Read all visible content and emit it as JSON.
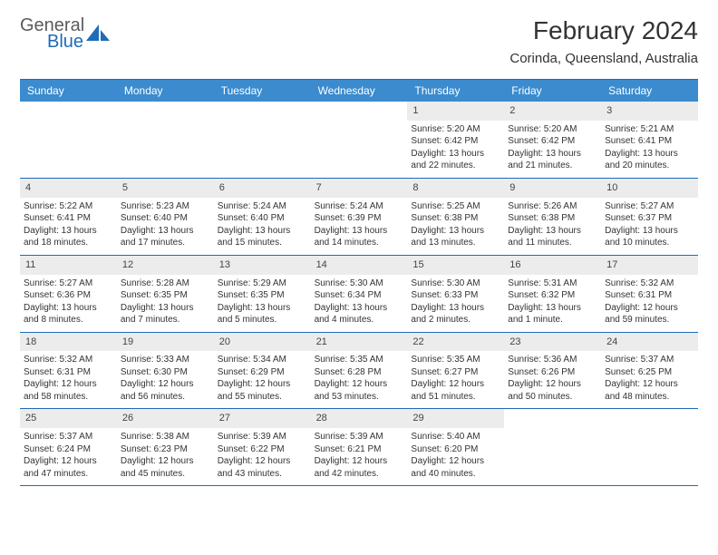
{
  "logo": {
    "word1": "General",
    "word2": "Blue",
    "icon_color": "#1e6bb8",
    "text_color_gray": "#5b5b5b"
  },
  "title": "February 2024",
  "location": "Corinda, Queensland, Australia",
  "weekday_bg": "#3b8bce",
  "border_color": "#1e6bb8",
  "daynum_bg": "#ececec",
  "weekdays": [
    "Sunday",
    "Monday",
    "Tuesday",
    "Wednesday",
    "Thursday",
    "Friday",
    "Saturday"
  ],
  "weeks": [
    [
      {
        "day": "",
        "sunrise": "",
        "sunset": "",
        "daylight1": "",
        "daylight2": ""
      },
      {
        "day": "",
        "sunrise": "",
        "sunset": "",
        "daylight1": "",
        "daylight2": ""
      },
      {
        "day": "",
        "sunrise": "",
        "sunset": "",
        "daylight1": "",
        "daylight2": ""
      },
      {
        "day": "",
        "sunrise": "",
        "sunset": "",
        "daylight1": "",
        "daylight2": ""
      },
      {
        "day": "1",
        "sunrise": "Sunrise: 5:20 AM",
        "sunset": "Sunset: 6:42 PM",
        "daylight1": "Daylight: 13 hours",
        "daylight2": "and 22 minutes."
      },
      {
        "day": "2",
        "sunrise": "Sunrise: 5:20 AM",
        "sunset": "Sunset: 6:42 PM",
        "daylight1": "Daylight: 13 hours",
        "daylight2": "and 21 minutes."
      },
      {
        "day": "3",
        "sunrise": "Sunrise: 5:21 AM",
        "sunset": "Sunset: 6:41 PM",
        "daylight1": "Daylight: 13 hours",
        "daylight2": "and 20 minutes."
      }
    ],
    [
      {
        "day": "4",
        "sunrise": "Sunrise: 5:22 AM",
        "sunset": "Sunset: 6:41 PM",
        "daylight1": "Daylight: 13 hours",
        "daylight2": "and 18 minutes."
      },
      {
        "day": "5",
        "sunrise": "Sunrise: 5:23 AM",
        "sunset": "Sunset: 6:40 PM",
        "daylight1": "Daylight: 13 hours",
        "daylight2": "and 17 minutes."
      },
      {
        "day": "6",
        "sunrise": "Sunrise: 5:24 AM",
        "sunset": "Sunset: 6:40 PM",
        "daylight1": "Daylight: 13 hours",
        "daylight2": "and 15 minutes."
      },
      {
        "day": "7",
        "sunrise": "Sunrise: 5:24 AM",
        "sunset": "Sunset: 6:39 PM",
        "daylight1": "Daylight: 13 hours",
        "daylight2": "and 14 minutes."
      },
      {
        "day": "8",
        "sunrise": "Sunrise: 5:25 AM",
        "sunset": "Sunset: 6:38 PM",
        "daylight1": "Daylight: 13 hours",
        "daylight2": "and 13 minutes."
      },
      {
        "day": "9",
        "sunrise": "Sunrise: 5:26 AM",
        "sunset": "Sunset: 6:38 PM",
        "daylight1": "Daylight: 13 hours",
        "daylight2": "and 11 minutes."
      },
      {
        "day": "10",
        "sunrise": "Sunrise: 5:27 AM",
        "sunset": "Sunset: 6:37 PM",
        "daylight1": "Daylight: 13 hours",
        "daylight2": "and 10 minutes."
      }
    ],
    [
      {
        "day": "11",
        "sunrise": "Sunrise: 5:27 AM",
        "sunset": "Sunset: 6:36 PM",
        "daylight1": "Daylight: 13 hours",
        "daylight2": "and 8 minutes."
      },
      {
        "day": "12",
        "sunrise": "Sunrise: 5:28 AM",
        "sunset": "Sunset: 6:35 PM",
        "daylight1": "Daylight: 13 hours",
        "daylight2": "and 7 minutes."
      },
      {
        "day": "13",
        "sunrise": "Sunrise: 5:29 AM",
        "sunset": "Sunset: 6:35 PM",
        "daylight1": "Daylight: 13 hours",
        "daylight2": "and 5 minutes."
      },
      {
        "day": "14",
        "sunrise": "Sunrise: 5:30 AM",
        "sunset": "Sunset: 6:34 PM",
        "daylight1": "Daylight: 13 hours",
        "daylight2": "and 4 minutes."
      },
      {
        "day": "15",
        "sunrise": "Sunrise: 5:30 AM",
        "sunset": "Sunset: 6:33 PM",
        "daylight1": "Daylight: 13 hours",
        "daylight2": "and 2 minutes."
      },
      {
        "day": "16",
        "sunrise": "Sunrise: 5:31 AM",
        "sunset": "Sunset: 6:32 PM",
        "daylight1": "Daylight: 13 hours",
        "daylight2": "and 1 minute."
      },
      {
        "day": "17",
        "sunrise": "Sunrise: 5:32 AM",
        "sunset": "Sunset: 6:31 PM",
        "daylight1": "Daylight: 12 hours",
        "daylight2": "and 59 minutes."
      }
    ],
    [
      {
        "day": "18",
        "sunrise": "Sunrise: 5:32 AM",
        "sunset": "Sunset: 6:31 PM",
        "daylight1": "Daylight: 12 hours",
        "daylight2": "and 58 minutes."
      },
      {
        "day": "19",
        "sunrise": "Sunrise: 5:33 AM",
        "sunset": "Sunset: 6:30 PM",
        "daylight1": "Daylight: 12 hours",
        "daylight2": "and 56 minutes."
      },
      {
        "day": "20",
        "sunrise": "Sunrise: 5:34 AM",
        "sunset": "Sunset: 6:29 PM",
        "daylight1": "Daylight: 12 hours",
        "daylight2": "and 55 minutes."
      },
      {
        "day": "21",
        "sunrise": "Sunrise: 5:35 AM",
        "sunset": "Sunset: 6:28 PM",
        "daylight1": "Daylight: 12 hours",
        "daylight2": "and 53 minutes."
      },
      {
        "day": "22",
        "sunrise": "Sunrise: 5:35 AM",
        "sunset": "Sunset: 6:27 PM",
        "daylight1": "Daylight: 12 hours",
        "daylight2": "and 51 minutes."
      },
      {
        "day": "23",
        "sunrise": "Sunrise: 5:36 AM",
        "sunset": "Sunset: 6:26 PM",
        "daylight1": "Daylight: 12 hours",
        "daylight2": "and 50 minutes."
      },
      {
        "day": "24",
        "sunrise": "Sunrise: 5:37 AM",
        "sunset": "Sunset: 6:25 PM",
        "daylight1": "Daylight: 12 hours",
        "daylight2": "and 48 minutes."
      }
    ],
    [
      {
        "day": "25",
        "sunrise": "Sunrise: 5:37 AM",
        "sunset": "Sunset: 6:24 PM",
        "daylight1": "Daylight: 12 hours",
        "daylight2": "and 47 minutes."
      },
      {
        "day": "26",
        "sunrise": "Sunrise: 5:38 AM",
        "sunset": "Sunset: 6:23 PM",
        "daylight1": "Daylight: 12 hours",
        "daylight2": "and 45 minutes."
      },
      {
        "day": "27",
        "sunrise": "Sunrise: 5:39 AM",
        "sunset": "Sunset: 6:22 PM",
        "daylight1": "Daylight: 12 hours",
        "daylight2": "and 43 minutes."
      },
      {
        "day": "28",
        "sunrise": "Sunrise: 5:39 AM",
        "sunset": "Sunset: 6:21 PM",
        "daylight1": "Daylight: 12 hours",
        "daylight2": "and 42 minutes."
      },
      {
        "day": "29",
        "sunrise": "Sunrise: 5:40 AM",
        "sunset": "Sunset: 6:20 PM",
        "daylight1": "Daylight: 12 hours",
        "daylight2": "and 40 minutes."
      },
      {
        "day": "",
        "sunrise": "",
        "sunset": "",
        "daylight1": "",
        "daylight2": ""
      },
      {
        "day": "",
        "sunrise": "",
        "sunset": "",
        "daylight1": "",
        "daylight2": ""
      }
    ]
  ]
}
